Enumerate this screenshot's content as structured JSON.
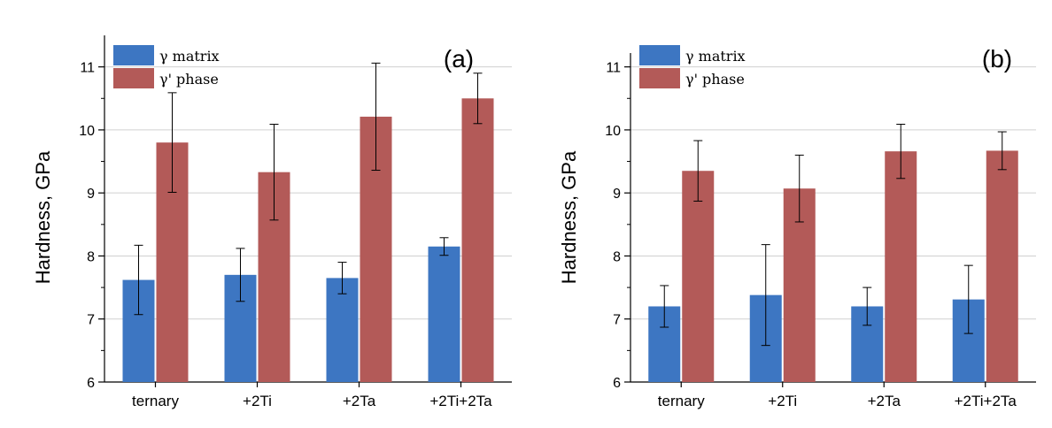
{
  "chart_data": [
    {
      "type": "bar",
      "panel_label": "(a)",
      "ylabel": "Hardness, GPa",
      "xlabel": "",
      "ylim": [
        6,
        11.5
      ],
      "yticks": [
        6,
        7,
        8,
        9,
        10,
        11
      ],
      "ytick_labels": [
        "6",
        "7",
        "8",
        "9",
        "10",
        "11"
      ],
      "grid": true,
      "legend_position": "top-left",
      "categories": [
        "ternary",
        "+2Ti",
        "+2Ta",
        "+2Ti+2Ta"
      ],
      "series": [
        {
          "name": "γ matrix",
          "color": "#3d76c2",
          "values": [
            7.62,
            7.7,
            7.65,
            8.15
          ],
          "errors": [
            0.55,
            0.42,
            0.25,
            0.14
          ]
        },
        {
          "name": "γ' phase",
          "color": "#b35a58",
          "values": [
            9.8,
            9.33,
            10.21,
            10.5
          ],
          "errors": [
            0.79,
            0.76,
            0.85,
            0.4
          ]
        }
      ]
    },
    {
      "type": "bar",
      "panel_label": "(b)",
      "ylabel": "Hardness, GPa",
      "xlabel": "",
      "ylim": [
        6,
        11.5
      ],
      "yticks": [
        6,
        7,
        8,
        9,
        10,
        11
      ],
      "ytick_labels": [
        "6",
        "7",
        "8",
        "9",
        "10",
        "11"
      ],
      "grid": true,
      "legend_position": "top-left",
      "categories": [
        "ternary",
        "+2Ti",
        "+2Ta",
        "+2Ti+2Ta"
      ],
      "series": [
        {
          "name": "γ matrix",
          "color": "#3d76c2",
          "values": [
            7.2,
            7.38,
            7.2,
            7.31
          ],
          "errors": [
            0.33,
            0.8,
            0.3,
            0.54
          ]
        },
        {
          "name": "γ' phase",
          "color": "#b35a58",
          "values": [
            9.35,
            9.07,
            9.66,
            9.67
          ],
          "errors": [
            0.48,
            0.53,
            0.43,
            0.3
          ]
        }
      ]
    }
  ]
}
